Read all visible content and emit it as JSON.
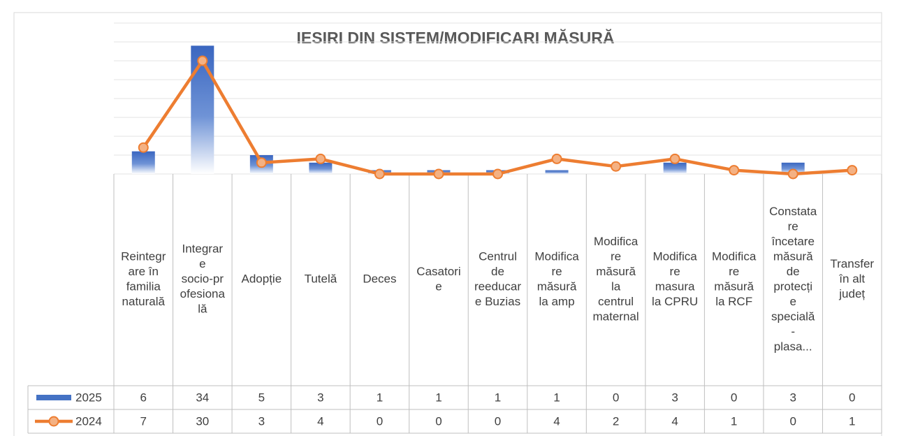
{
  "chart_data": {
    "type": "bar_line",
    "title": "IESIRI DIN SISTEM/MODIFICARI MĂSURĂ",
    "categories": [
      "Reintegrare în familia naturală",
      "Integrare socio-profesională",
      "Adopție",
      "Tutelă",
      "Deces",
      "Casatorie",
      "Centrul de reeducare Buzias",
      "Modificare măsură la amp",
      "Modificare măsură la centrul maternal",
      "Modificare masura la CPRU",
      "Modificare măsură la RCF",
      "Constatare încetare măsură de protecție specială - plasa...",
      "Transfer în alt județ"
    ],
    "series": [
      {
        "name": "2025",
        "type": "bar",
        "color": "#4472c4",
        "values": [
          6,
          34,
          5,
          3,
          1,
          1,
          1,
          1,
          0,
          3,
          0,
          3,
          0
        ]
      },
      {
        "name": "2024",
        "type": "line",
        "color": "#ed7d31",
        "values": [
          7,
          30,
          3,
          4,
          0,
          0,
          0,
          4,
          2,
          4,
          1,
          0,
          1
        ]
      }
    ],
    "ylim": [
      0,
      40
    ],
    "yticks": [
      0,
      5,
      10,
      15,
      20,
      25,
      30,
      35,
      40
    ],
    "grid": true
  }
}
